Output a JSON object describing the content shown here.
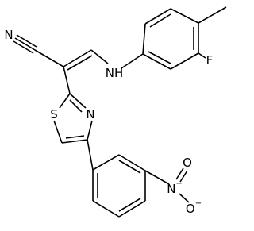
{
  "atoms": [
    {
      "label": "N"
    },
    {
      "label": "NH"
    },
    {
      "label": "F"
    },
    {
      "label": "S"
    },
    {
      "label": "N"
    },
    {
      "label": "N",
      "charge": "+"
    },
    {
      "label": "O"
    },
    {
      "label": "O",
      "charge": "−"
    }
  ]
}
